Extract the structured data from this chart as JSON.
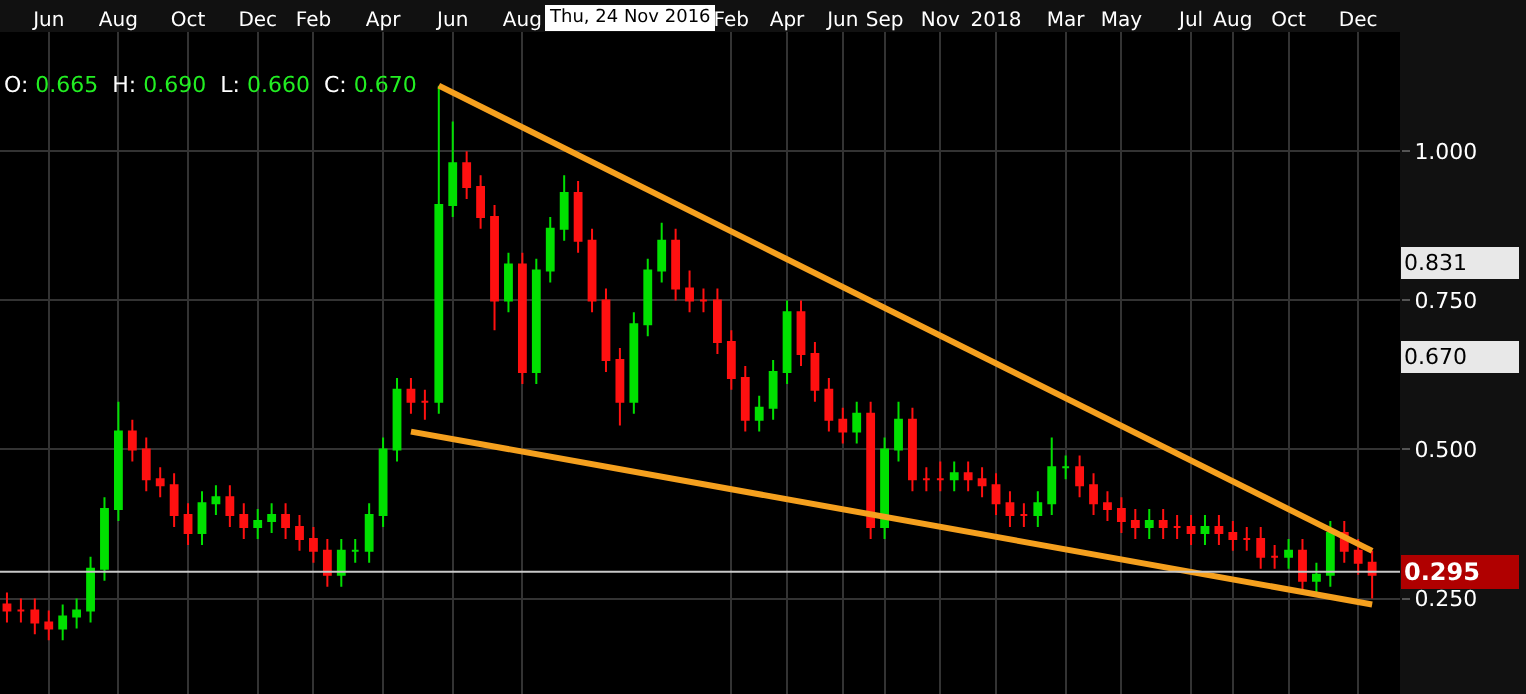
{
  "chart_data": {
    "type": "candlestick",
    "categories": [
      null,
      null,
      null,
      "Jun",
      null,
      null,
      null,
      null,
      "Aug",
      null,
      null,
      null,
      null,
      "Oct",
      null,
      null,
      null,
      null,
      "Dec",
      null,
      null,
      null,
      "Feb",
      null,
      null,
      null,
      null,
      "Apr",
      null,
      null,
      null,
      null,
      "Jun",
      null,
      null,
      null,
      null,
      "Aug",
      null,
      null,
      null,
      null,
      null,
      null,
      null,
      null,
      null,
      null,
      null,
      null,
      null,
      null,
      "Feb",
      null,
      null,
      null,
      "Apr",
      null,
      null,
      null,
      "Jun",
      null,
      null,
      "Sep",
      null,
      null,
      null,
      "Nov",
      null,
      null,
      null,
      "2018",
      null,
      null,
      null,
      null,
      "Mar",
      null,
      null,
      null,
      "May",
      null,
      null,
      null,
      null,
      "Jul",
      null,
      null,
      "Aug",
      null,
      null,
      null,
      "Oct",
      null,
      null,
      null,
      null,
      "Dec",
      null
    ],
    "ohlc": [
      [
        0.24,
        0.26,
        0.21,
        0.23
      ],
      [
        0.23,
        0.25,
        0.21,
        0.23
      ],
      [
        0.23,
        0.25,
        0.19,
        0.21
      ],
      [
        0.21,
        0.23,
        0.18,
        0.2
      ],
      [
        0.2,
        0.24,
        0.18,
        0.22
      ],
      [
        0.22,
        0.25,
        0.2,
        0.23
      ],
      [
        0.23,
        0.32,
        0.21,
        0.3
      ],
      [
        0.3,
        0.42,
        0.28,
        0.4
      ],
      [
        0.4,
        0.58,
        0.38,
        0.53
      ],
      [
        0.53,
        0.55,
        0.48,
        0.5
      ],
      [
        0.5,
        0.52,
        0.43,
        0.45
      ],
      [
        0.45,
        0.47,
        0.42,
        0.44
      ],
      [
        0.44,
        0.46,
        0.37,
        0.39
      ],
      [
        0.39,
        0.41,
        0.34,
        0.36
      ],
      [
        0.36,
        0.43,
        0.34,
        0.41
      ],
      [
        0.41,
        0.44,
        0.39,
        0.42
      ],
      [
        0.42,
        0.44,
        0.37,
        0.39
      ],
      [
        0.39,
        0.41,
        0.35,
        0.37
      ],
      [
        0.37,
        0.4,
        0.35,
        0.38
      ],
      [
        0.38,
        0.41,
        0.36,
        0.39
      ],
      [
        0.39,
        0.41,
        0.35,
        0.37
      ],
      [
        0.37,
        0.39,
        0.33,
        0.35
      ],
      [
        0.35,
        0.37,
        0.31,
        0.33
      ],
      [
        0.33,
        0.35,
        0.27,
        0.29
      ],
      [
        0.29,
        0.35,
        0.27,
        0.33
      ],
      [
        0.33,
        0.35,
        0.31,
        0.33
      ],
      [
        0.33,
        0.41,
        0.31,
        0.39
      ],
      [
        0.39,
        0.52,
        0.37,
        0.5
      ],
      [
        0.5,
        0.62,
        0.48,
        0.6
      ],
      [
        0.6,
        0.62,
        0.56,
        0.58
      ],
      [
        0.58,
        0.6,
        0.55,
        0.58
      ],
      [
        0.58,
        1.11,
        0.56,
        0.91
      ],
      [
        0.91,
        1.05,
        0.89,
        0.98
      ],
      [
        0.98,
        1.0,
        0.92,
        0.94
      ],
      [
        0.94,
        0.96,
        0.87,
        0.89
      ],
      [
        0.89,
        0.91,
        0.7,
        0.75
      ],
      [
        0.75,
        0.83,
        0.73,
        0.81
      ],
      [
        0.81,
        0.83,
        0.61,
        0.63
      ],
      [
        0.63,
        0.82,
        0.61,
        0.8
      ],
      [
        0.8,
        0.89,
        0.78,
        0.87
      ],
      [
        0.87,
        0.96,
        0.85,
        0.93
      ],
      [
        0.93,
        0.95,
        0.83,
        0.85
      ],
      [
        0.85,
        0.87,
        0.73,
        0.75
      ],
      [
        0.75,
        0.77,
        0.63,
        0.65
      ],
      [
        0.65,
        0.67,
        0.54,
        0.58
      ],
      [
        0.58,
        0.73,
        0.56,
        0.71
      ],
      [
        0.71,
        0.82,
        0.69,
        0.8
      ],
      [
        0.8,
        0.88,
        0.78,
        0.85
      ],
      [
        0.85,
        0.87,
        0.75,
        0.77
      ],
      [
        0.77,
        0.8,
        0.73,
        0.75
      ],
      [
        0.75,
        0.77,
        0.73,
        0.75
      ],
      [
        0.75,
        0.77,
        0.66,
        0.68
      ],
      [
        0.68,
        0.7,
        0.6,
        0.62
      ],
      [
        0.62,
        0.64,
        0.53,
        0.55
      ],
      [
        0.55,
        0.59,
        0.53,
        0.57
      ],
      [
        0.57,
        0.65,
        0.55,
        0.63
      ],
      [
        0.63,
        0.75,
        0.61,
        0.73
      ],
      [
        0.73,
        0.75,
        0.64,
        0.66
      ],
      [
        0.66,
        0.68,
        0.58,
        0.6
      ],
      [
        0.6,
        0.62,
        0.53,
        0.55
      ],
      [
        0.55,
        0.57,
        0.51,
        0.53
      ],
      [
        0.53,
        0.58,
        0.51,
        0.56
      ],
      [
        0.56,
        0.58,
        0.35,
        0.37
      ],
      [
        0.37,
        0.52,
        0.35,
        0.5
      ],
      [
        0.5,
        0.58,
        0.48,
        0.55
      ],
      [
        0.55,
        0.57,
        0.43,
        0.45
      ],
      [
        0.45,
        0.47,
        0.43,
        0.45
      ],
      [
        0.45,
        0.48,
        0.43,
        0.45
      ],
      [
        0.45,
        0.48,
        0.43,
        0.46
      ],
      [
        0.46,
        0.48,
        0.43,
        0.45
      ],
      [
        0.45,
        0.47,
        0.42,
        0.44
      ],
      [
        0.44,
        0.46,
        0.39,
        0.41
      ],
      [
        0.41,
        0.43,
        0.37,
        0.39
      ],
      [
        0.39,
        0.41,
        0.37,
        0.39
      ],
      [
        0.39,
        0.43,
        0.37,
        0.41
      ],
      [
        0.41,
        0.52,
        0.39,
        0.47
      ],
      [
        0.47,
        0.49,
        0.45,
        0.47
      ],
      [
        0.47,
        0.49,
        0.42,
        0.44
      ],
      [
        0.44,
        0.46,
        0.39,
        0.41
      ],
      [
        0.41,
        0.43,
        0.38,
        0.4
      ],
      [
        0.4,
        0.42,
        0.36,
        0.38
      ],
      [
        0.38,
        0.4,
        0.35,
        0.37
      ],
      [
        0.37,
        0.4,
        0.35,
        0.38
      ],
      [
        0.38,
        0.4,
        0.35,
        0.37
      ],
      [
        0.37,
        0.39,
        0.35,
        0.37
      ],
      [
        0.37,
        0.39,
        0.34,
        0.36
      ],
      [
        0.36,
        0.39,
        0.34,
        0.37
      ],
      [
        0.37,
        0.39,
        0.34,
        0.36
      ],
      [
        0.36,
        0.38,
        0.33,
        0.35
      ],
      [
        0.35,
        0.37,
        0.33,
        0.35
      ],
      [
        0.35,
        0.37,
        0.3,
        0.32
      ],
      [
        0.32,
        0.34,
        0.3,
        0.32
      ],
      [
        0.32,
        0.35,
        0.3,
        0.33
      ],
      [
        0.33,
        0.35,
        0.26,
        0.28
      ],
      [
        0.28,
        0.31,
        0.26,
        0.29
      ],
      [
        0.29,
        0.38,
        0.27,
        0.36
      ],
      [
        0.36,
        0.38,
        0.31,
        0.33
      ],
      [
        0.33,
        0.35,
        0.29,
        0.31
      ],
      [
        0.31,
        0.33,
        0.25,
        0.29
      ]
    ],
    "series": [
      {
        "type": "line",
        "color": "#f5a01e",
        "values": [
          null,
          null,
          null,
          null,
          null,
          null,
          null,
          null,
          null,
          null,
          null,
          null,
          null,
          null,
          null,
          null,
          null,
          null,
          null,
          null,
          null,
          null,
          null,
          null,
          null,
          null,
          null,
          null,
          null,
          null,
          null,
          1.11,
          null,
          null,
          null,
          null,
          null,
          null,
          null,
          null,
          null,
          null,
          null,
          null,
          null,
          null,
          null,
          null,
          null,
          null,
          null,
          null,
          null,
          null,
          null,
          null,
          null,
          null,
          null,
          null,
          null,
          null,
          null,
          null,
          null,
          null,
          null,
          null,
          null,
          null,
          null,
          null,
          null,
          null,
          null,
          null,
          null,
          null,
          null,
          null,
          null,
          null,
          null,
          null,
          null,
          null,
          null,
          null,
          null,
          null,
          null,
          null,
          null,
          null,
          null,
          null,
          null,
          null,
          0.33
        ]
      },
      {
        "type": "line",
        "color": "#f5a01e",
        "values": [
          null,
          null,
          null,
          null,
          null,
          null,
          null,
          null,
          null,
          null,
          null,
          null,
          null,
          null,
          null,
          null,
          null,
          null,
          null,
          null,
          null,
          null,
          null,
          null,
          null,
          null,
          null,
          null,
          null,
          0.53,
          null,
          null,
          null,
          null,
          null,
          null,
          null,
          null,
          null,
          null,
          null,
          null,
          null,
          null,
          null,
          null,
          null,
          null,
          null,
          null,
          null,
          null,
          null,
          null,
          null,
          null,
          null,
          null,
          null,
          null,
          null,
          null,
          null,
          null,
          null,
          null,
          null,
          null,
          null,
          null,
          null,
          null,
          null,
          null,
          null,
          null,
          null,
          null,
          null,
          null,
          null,
          null,
          null,
          null,
          null,
          null,
          null,
          null,
          null,
          null,
          null,
          null,
          null,
          null,
          null,
          null,
          null,
          null,
          0.24
        ]
      }
    ],
    "ylim": [
      0.09,
      1.2
    ],
    "yticks": [
      {
        "value": 0.25,
        "label": "0.250"
      },
      {
        "value": 0.5,
        "label": "0.500"
      },
      {
        "value": 0.75,
        "label": "0.750"
      },
      {
        "value": 1.0,
        "label": "1.000"
      }
    ],
    "grid": true,
    "ref_lines": [
      {
        "axis": "y",
        "value": 0.295,
        "label": "0.295",
        "color": "#c8c8c8"
      }
    ],
    "annotations": [
      "O: 0.665  H: 0.690  L: 0.660  C: 0.670",
      "Thu, 24 Nov 2016",
      "0.831",
      "0.670"
    ]
  }
}
